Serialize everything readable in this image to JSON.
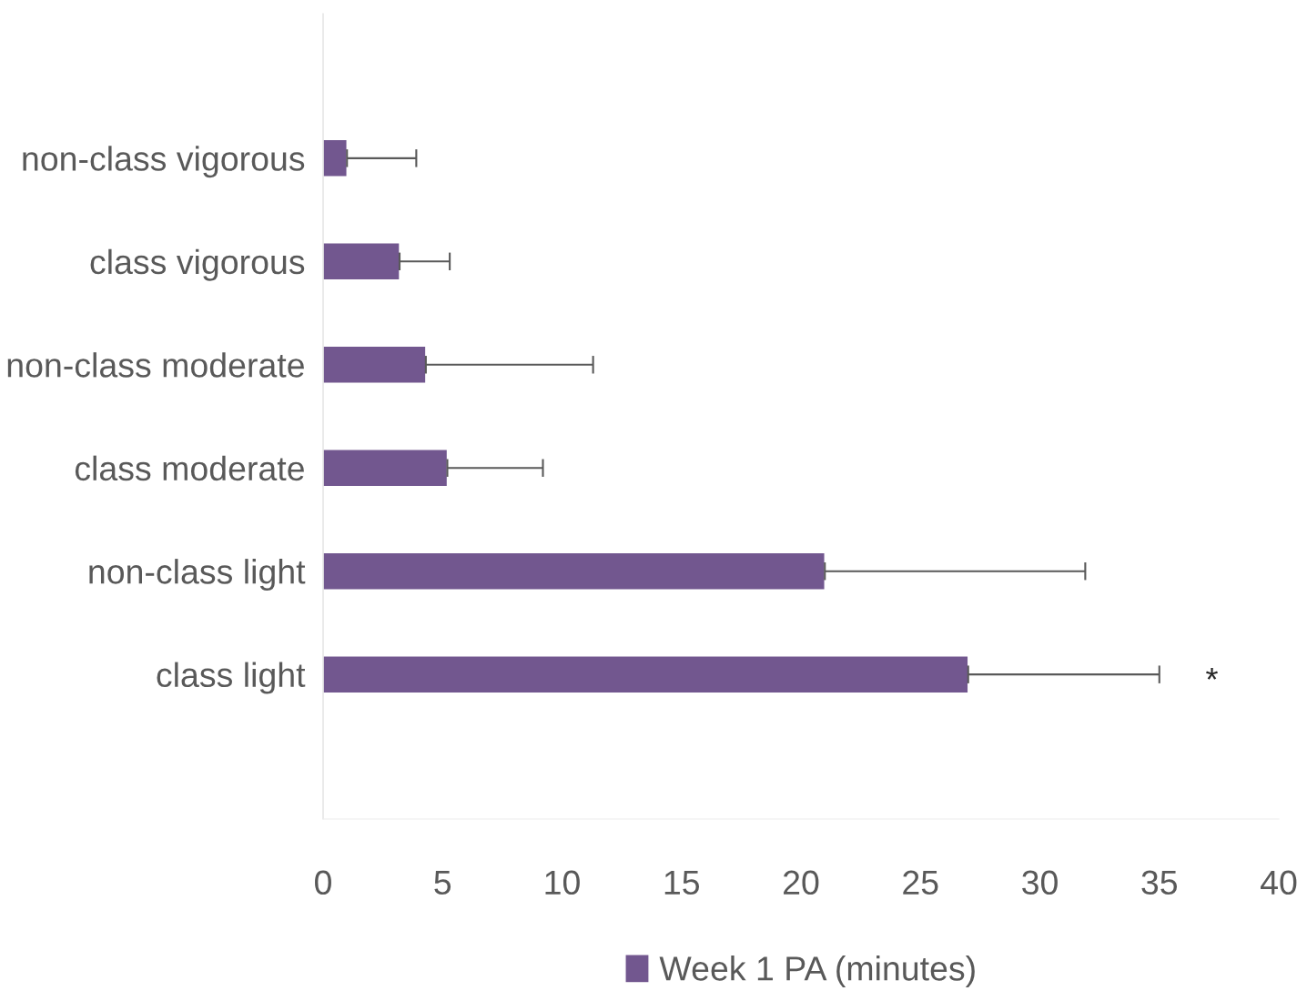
{
  "chart_data": {
    "type": "bar",
    "orientation": "horizontal",
    "categories": [
      "non-class vigorous",
      "class vigorous",
      "non-class moderate",
      "class moderate",
      "non-class light",
      "class light"
    ],
    "series": [
      {
        "name": "Week 1 PA (minutes)",
        "color": "#72578f",
        "values": [
          1.0,
          3.2,
          4.3,
          5.2,
          21.0,
          27.0
        ],
        "errors": [
          [
            1.0,
            3.9
          ],
          [
            3.2,
            5.3
          ],
          [
            4.3,
            11.3
          ],
          [
            5.2,
            9.2
          ],
          [
            21.0,
            31.9
          ],
          [
            27.0,
            35.0
          ]
        ]
      }
    ],
    "xlim": [
      0,
      40
    ],
    "xticks": [
      0,
      5,
      10,
      15,
      20,
      25,
      30,
      35,
      40
    ],
    "annotations": [
      "*"
    ],
    "grid": false,
    "legend": "bottom"
  }
}
